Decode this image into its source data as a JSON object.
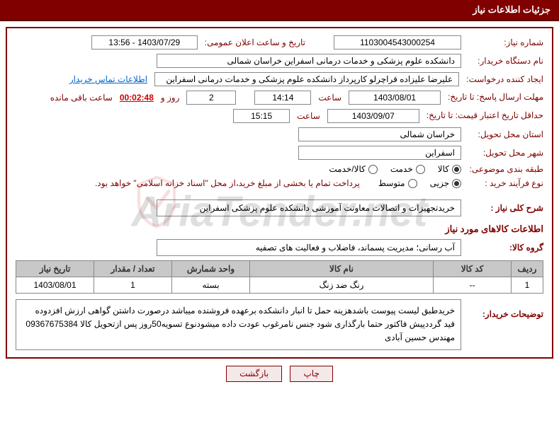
{
  "header": {
    "title": "جزئیات اطلاعات نیاز"
  },
  "fields": {
    "need_number_label": "شماره نیاز:",
    "need_number": "1103004543000254",
    "announce_label": "تاریخ و ساعت اعلان عمومی:",
    "announce_value": "1403/07/29 - 13:56",
    "buyer_org_label": "نام دستگاه خریدار:",
    "buyer_org": "دانشکده علوم پزشکی و خدمات درمانی اسفراین خراسان شمالی",
    "requester_label": "ایجاد کننده درخواست:",
    "requester": "علیرضا علیزاده قراچرلو کارپرداز  دانشکده علوم پزشکی و خدمات درمانی اسفراین",
    "contact_link": "اطلاعات تماس خریدار",
    "deadline_label": "مهلت ارسال پاسخ: تا تاریخ:",
    "deadline_date": "1403/08/01",
    "time_label": "ساعت",
    "deadline_time": "14:14",
    "days_value": "2",
    "days_and": "روز و",
    "countdown": "00:02:48",
    "remaining": "ساعت باقی مانده",
    "validity_label": "حداقل تاریخ اعتبار قیمت: تا تاریخ:",
    "validity_date": "1403/09/07",
    "validity_time": "15:15",
    "delivery_province_label": "استان محل تحویل:",
    "delivery_province": "خراسان شمالی",
    "delivery_city_label": "شهر محل تحویل:",
    "delivery_city": "اسفراین",
    "category_label": "طبقه بندی موضوعی:",
    "cat_goods": "کالا",
    "cat_service": "خدمت",
    "cat_both": "کالا/خدمت",
    "process_label": "نوع فرآیند خرید :",
    "proc_partial": "جزیی",
    "proc_medium": "متوسط",
    "payment_note": "پرداخت تمام یا بخشی از مبلغ خرید،از محل \"اسناد خزانه اسلامی\" خواهد بود."
  },
  "description": {
    "title": "شرح کلی نیاز :",
    "text": "خریدتجهیزات و اتصالات معاونت آموزشی دانشکده علوم پزشکی اسفراین"
  },
  "goods_info": {
    "title": "اطلاعات کالاهای مورد نیاز",
    "group_label": "گروه کالا:",
    "group_value": "آب رسانی؛ مدیریت پسماند، فاضلاب و فعالیت های تصفیه"
  },
  "table": {
    "headers": {
      "row": "ردیف",
      "code": "کد کالا",
      "name": "نام کالا",
      "unit": "واحد شمارش",
      "qty": "تعداد / مقدار",
      "date": "تاریخ نیاز"
    },
    "rows": [
      {
        "row": "1",
        "code": "--",
        "name": "رنگ ضد زنگ",
        "unit": "بسته",
        "qty": "1",
        "date": "1403/08/01"
      }
    ]
  },
  "buyer_notes": {
    "label": "توضیحات خریدار:",
    "text": "خریدطبق لیست پیوست باشدهزینه حمل تا انبار دانشکده برعهده فروشنده میباشد درصورت داشتن گواهی ارزش افزدوده قید گرددپیش فاکتور حتما بارگذاری شود جنس نامرغوب عودت داده میشودنوع تسویه50روز پس ازتحویل کالا 09367675384 مهندس حسین آبادی"
  },
  "buttons": {
    "print": "چاپ",
    "back": "بازگشت"
  },
  "watermark": "AriaTender.net"
}
